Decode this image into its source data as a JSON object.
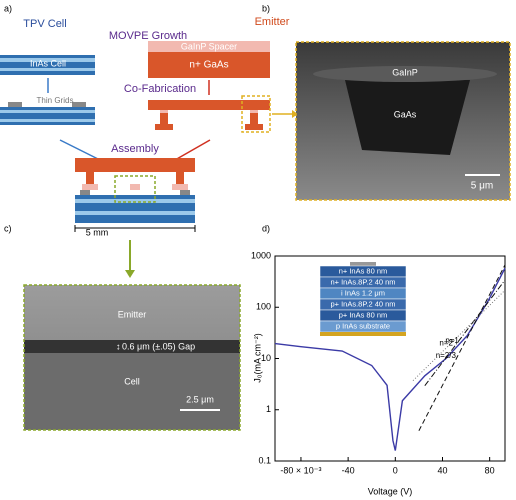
{
  "panel_a": {
    "label": "a)",
    "tpv_cell": "TPV Cell",
    "movpe": "MOVPE Growth",
    "emitter": "Emitter",
    "spacer": "GaInP Spacer",
    "gaas": "n+ GaAs",
    "inas_cell": "InAs Cell",
    "thin_grids": "Thin Grids",
    "cofab": "Co-Fabrication",
    "assembly": "Assembly",
    "scale": "5 mm"
  },
  "panel_b": {
    "label": "b)",
    "gainp": "GaInP",
    "gaas": "GaAs",
    "scale": "5 μm"
  },
  "panel_c": {
    "label": "c)",
    "emitter": "Emitter",
    "gap": "0.6 μm (±.05) Gap",
    "cell": "Cell",
    "scale": "2.5 μm"
  },
  "chart_data": {
    "type": "line",
    "label": "d)",
    "ylabel": "J₀(mA cm⁻²)",
    "xlabel": "Voltage (V)",
    "xlim": [
      -0.102,
      0.093
    ],
    "ylim": [
      0.1,
      1000
    ],
    "log_y": true,
    "xticks": [
      {
        "value": -0.08,
        "label": "-80 × 10⁻³"
      },
      {
        "value": -0.04,
        "label": "-40"
      },
      0,
      {
        "value": 0.04,
        "label": "40"
      },
      {
        "value": 0.08,
        "label": "80"
      }
    ],
    "yticks": [
      0.1,
      1,
      10,
      100,
      1000
    ],
    "series": [
      {
        "color": "#3b3aa6",
        "x": [
          -0.102,
          -0.08,
          -0.045,
          -0.02,
          -0.007,
          -0.002,
          0,
          0.006,
          0.025,
          0.043,
          0.061,
          0.079,
          0.093
        ],
        "values": [
          19.6,
          17,
          14,
          7.3,
          3,
          0.25,
          0.16,
          1.5,
          4.6,
          10,
          28,
          137,
          580
        ]
      }
    ],
    "fits": [
      {
        "label": "n=2/3",
        "dash": "5,3",
        "color": "#111111",
        "x": [
          0.02,
          0.093
        ],
        "values": [
          0.39,
          670
        ]
      },
      {
        "label": "n=1",
        "dash": "6,2,1,2",
        "color": "#111111",
        "x": [
          0.025,
          0.093
        ],
        "values": [
          2.95,
          340
        ]
      },
      {
        "label": "n=2",
        "dash": "1,2",
        "color": "#777777",
        "x": [
          0.015,
          0.093
        ],
        "values": [
          3.7,
          215
        ]
      }
    ],
    "inset_layers": [
      "n+ InAs 80 nm",
      "n+ InAs.8P.2 40 nm",
      "i InAs 1.2 μm",
      "p+ InAs.8P.2 40 nm",
      "p+ InAs 80 nm",
      "p InAs substrate"
    ]
  }
}
